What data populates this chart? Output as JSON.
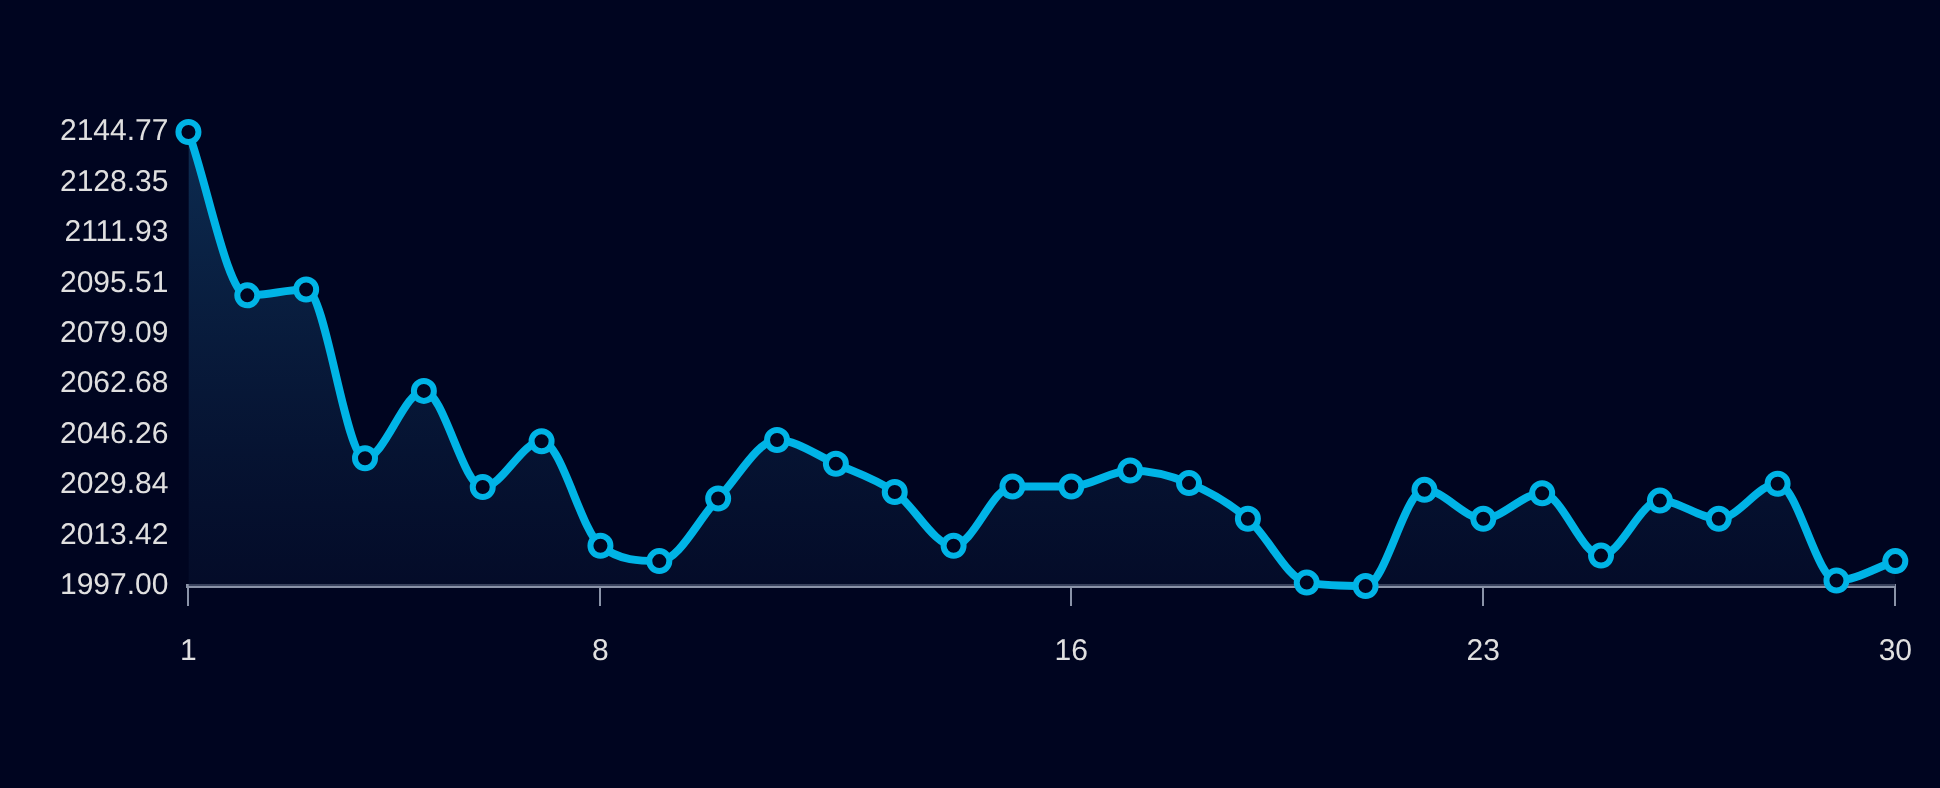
{
  "chart_data": {
    "type": "area",
    "x": [
      1,
      2,
      3,
      4,
      5,
      6,
      7,
      8,
      9,
      10,
      11,
      12,
      13,
      14,
      15,
      16,
      17,
      18,
      19,
      20,
      21,
      22,
      23,
      24,
      25,
      26,
      27,
      28,
      29,
      30
    ],
    "series": [
      {
        "color": "#00b4e6",
        "values": [
          2144.77,
          2091.6,
          2093.5,
          2038.6,
          2060.5,
          2029.2,
          2044.1,
          2010.1,
          2005.1,
          2025.5,
          2044.5,
          2036.8,
          2027.6,
          2010.1,
          2029.4,
          2029.4,
          2034.6,
          2030.5,
          2018.9,
          1998.1,
          1997,
          2028.3,
          2018.9,
          2027.2,
          2006.9,
          2024.8,
          2018.9,
          2030.3,
          1998.8,
          2005.1
        ]
      }
    ],
    "xlim": [
      1,
      30
    ],
    "xticks": [
      1,
      8,
      16,
      23,
      30
    ],
    "ylim": [
      1997,
      2144.77
    ],
    "yticks": [
      "1997.00",
      2013.42,
      2029.84,
      2046.26,
      2062.68,
      2079.09,
      2095.51,
      2111.93,
      2128.35,
      2144.77
    ],
    "grid": false,
    "legend": false,
    "marker": "circle",
    "line_style": "solid"
  }
}
